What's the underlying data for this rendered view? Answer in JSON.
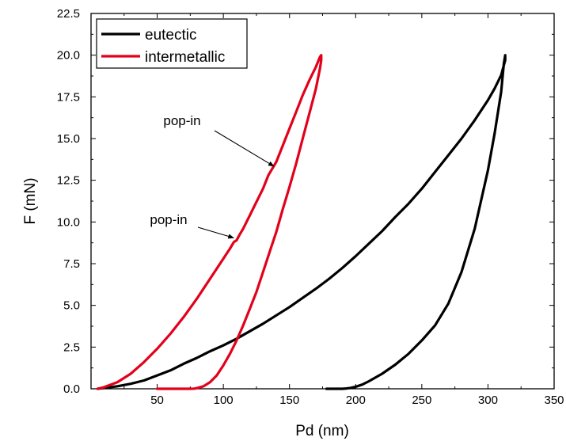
{
  "chart_data": {
    "type": "line",
    "title": "",
    "xlabel": "Pd (nm)",
    "ylabel": "F (mN)",
    "xlim": [
      0,
      350
    ],
    "ylim": [
      0,
      22.5
    ],
    "x_ticks": [
      50,
      100,
      150,
      200,
      250,
      300,
      350
    ],
    "y_ticks": [
      0.0,
      2.5,
      5.0,
      7.5,
      10.0,
      12.5,
      15.0,
      17.5,
      20.0,
      22.5
    ],
    "x_tick_labels": [
      "50",
      "100",
      "150",
      "200",
      "250",
      "300",
      "350"
    ],
    "y_tick_labels": [
      "0.0",
      "2.5",
      "5.0",
      "7.5",
      "10.0",
      "12.5",
      "15.0",
      "17.5",
      "20.0",
      "22.5"
    ],
    "grid": false,
    "legend": {
      "position": "top-left",
      "entries": [
        {
          "label": "eutectic",
          "color": "#000000"
        },
        {
          "label": "intermetallic",
          "color": "#e3001b"
        }
      ]
    },
    "series": [
      {
        "name": "eutectic",
        "color": "#000000",
        "x": [
          5,
          10,
          20,
          30,
          40,
          50,
          60,
          70,
          80,
          90,
          100,
          110,
          120,
          130,
          140,
          150,
          160,
          170,
          180,
          190,
          200,
          210,
          220,
          230,
          240,
          250,
          260,
          270,
          280,
          290,
          300,
          305,
          310,
          313,
          313,
          312,
          310,
          305,
          300,
          290,
          280,
          270,
          260,
          250,
          240,
          230,
          220,
          210,
          205,
          200,
          196,
          193,
          190,
          185,
          178
        ],
        "y": [
          0.0,
          0.05,
          0.15,
          0.3,
          0.5,
          0.8,
          1.1,
          1.5,
          1.85,
          2.25,
          2.6,
          3.0,
          3.45,
          3.9,
          4.4,
          4.9,
          5.45,
          6.0,
          6.6,
          7.25,
          7.95,
          8.7,
          9.45,
          10.3,
          11.1,
          12.0,
          13.0,
          14.0,
          15.0,
          16.1,
          17.3,
          18.0,
          18.8,
          19.7,
          20.0,
          19.5,
          17.8,
          15.3,
          13.1,
          9.6,
          7.0,
          5.1,
          3.8,
          2.9,
          2.1,
          1.45,
          0.9,
          0.45,
          0.25,
          0.12,
          0.05,
          0.02,
          0.0,
          0.0,
          0.0
        ]
      },
      {
        "name": "intermetallic",
        "color": "#e3001b",
        "x": [
          5,
          10,
          20,
          30,
          40,
          50,
          60,
          70,
          80,
          90,
          100,
          105,
          108,
          110,
          112,
          115,
          120,
          125,
          130,
          134,
          137,
          140,
          145,
          150,
          155,
          160,
          165,
          170,
          172,
          173,
          174,
          174,
          173,
          170,
          165,
          160,
          155,
          150,
          145,
          140,
          135,
          130,
          125,
          120,
          115,
          110,
          105,
          100,
          95,
          90,
          85,
          80,
          78,
          75,
          72,
          70,
          68,
          60,
          50
        ],
        "y": [
          0.0,
          0.1,
          0.4,
          0.9,
          1.6,
          2.4,
          3.3,
          4.3,
          5.4,
          6.6,
          7.8,
          8.4,
          8.8,
          8.9,
          9.2,
          9.6,
          10.4,
          11.2,
          12.0,
          12.8,
          13.2,
          13.6,
          14.6,
          15.6,
          16.6,
          17.6,
          18.5,
          19.3,
          19.7,
          19.9,
          20.0,
          19.7,
          19.2,
          18.0,
          16.5,
          15.0,
          13.5,
          12.1,
          10.8,
          9.4,
          8.2,
          7.0,
          5.8,
          4.8,
          3.8,
          2.9,
          2.1,
          1.4,
          0.8,
          0.4,
          0.15,
          0.04,
          0.01,
          0.0,
          0.0,
          0.0,
          0.0,
          0.0,
          0.0
        ]
      }
    ],
    "annotations": [
      {
        "text": "pop-in",
        "target_x": 137,
        "target_y": 13.2
      },
      {
        "text": "pop-in",
        "target_x": 109,
        "target_y": 9.0
      }
    ]
  }
}
